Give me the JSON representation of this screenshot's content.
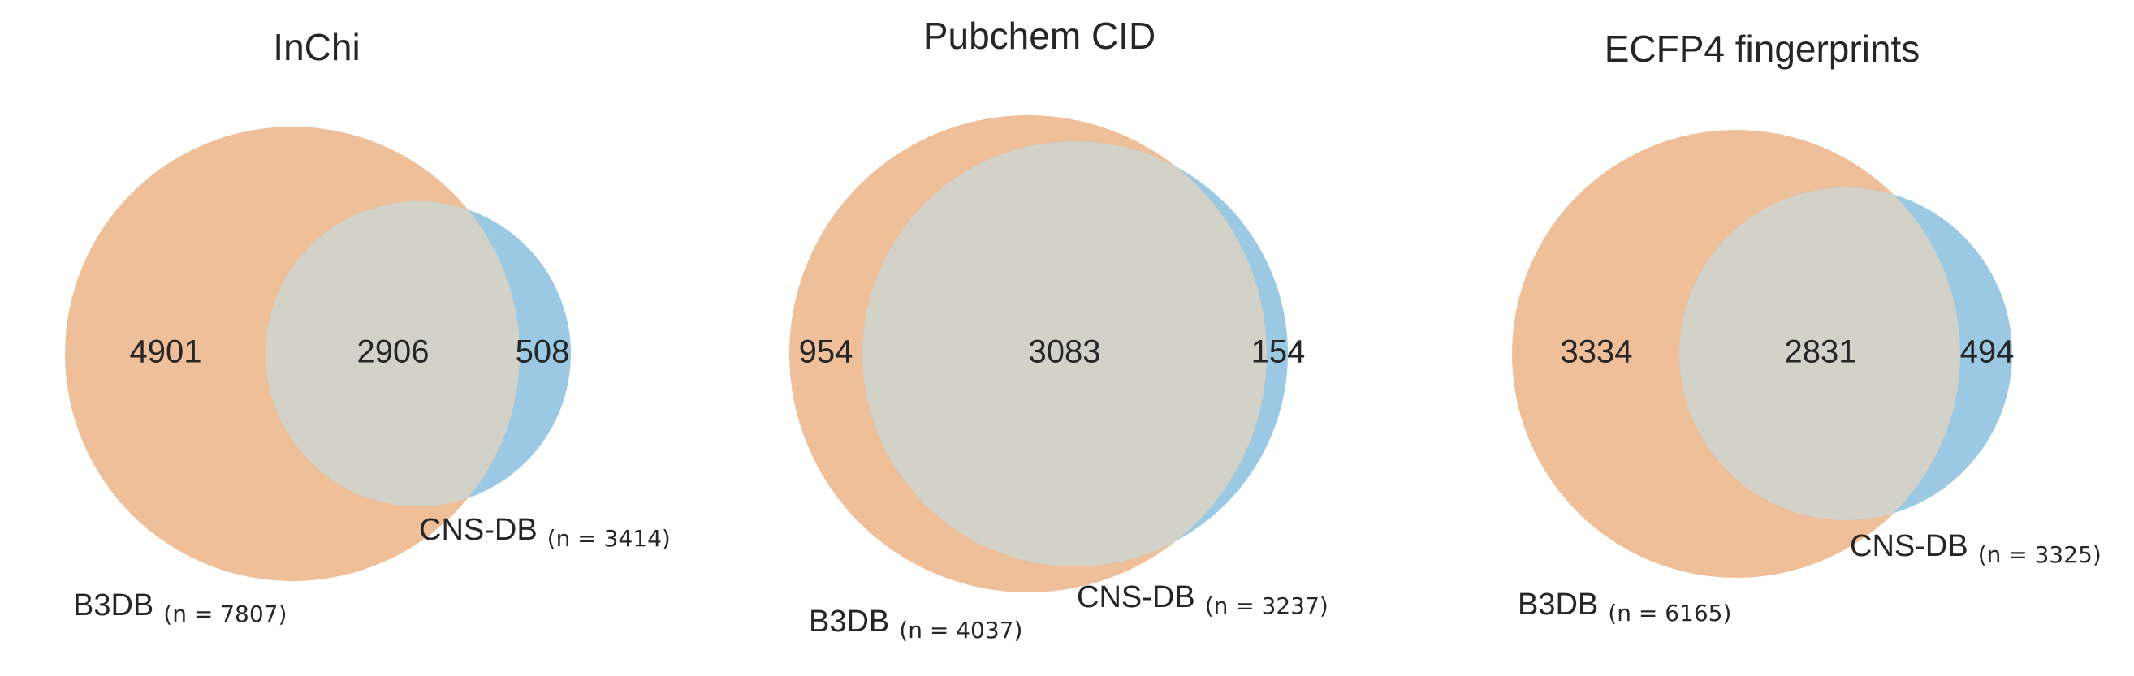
{
  "chart_data": [
    {
      "type": "venn",
      "title": "InChi",
      "sets": [
        {
          "name": "B3DB",
          "n": 7807,
          "n_label": "(n = 7807)",
          "color": "#E8A06A"
        },
        {
          "name": "CNS-DB",
          "n": 3414,
          "n_label": "(n = 3414)",
          "color": "#6BAED6"
        }
      ],
      "regions": {
        "left_only": "4901",
        "both": "2906",
        "right_only": "508"
      }
    },
    {
      "type": "venn",
      "title": "Pubchem CID",
      "sets": [
        {
          "name": "B3DB",
          "n": 4037,
          "n_label": "(n = 4037)",
          "color": "#E8A06A"
        },
        {
          "name": "CNS-DB",
          "n": 3237,
          "n_label": "(n = 3237)",
          "color": "#6BAED6"
        }
      ],
      "regions": {
        "left_only": "954",
        "both": "3083",
        "right_only": "154"
      }
    },
    {
      "type": "venn",
      "title": "ECFP4 fingerprints",
      "sets": [
        {
          "name": "B3DB",
          "n": 6165,
          "n_label": "(n = 6165)",
          "color": "#E8A06A"
        },
        {
          "name": "CNS-DB",
          "n": 3325,
          "n_label": "(n = 3325)",
          "color": "#6BAED6"
        }
      ],
      "regions": {
        "left_only": "3334",
        "both": "2831",
        "right_only": "494"
      }
    }
  ],
  "overlap_color": "#D3D2C9"
}
